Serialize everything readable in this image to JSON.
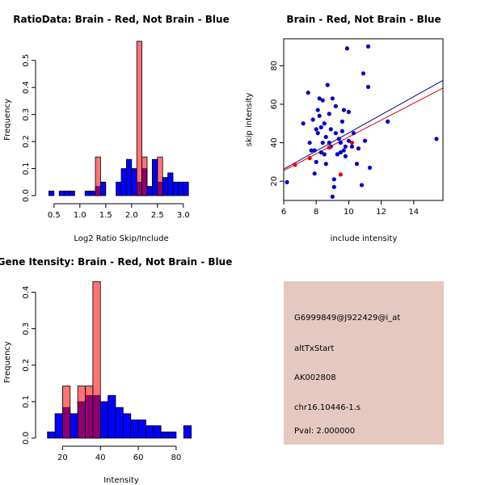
{
  "chart_data": [
    {
      "id": "ratio",
      "type": "histogram",
      "title": "RatioData: Brain - Red, Not Brain - Blue",
      "xlabel": "Log2 Ratio Skip/Include",
      "ylabel": "Frequency",
      "xlim": [
        0.3,
        3.3
      ],
      "ylim": [
        0,
        0.58
      ],
      "xticks": [
        0.5,
        1.0,
        1.5,
        2.0,
        2.5,
        3.0
      ],
      "xtick_labels": [
        "0.5",
        "1.0",
        "1.5",
        "2.0",
        "2.5",
        "3.0"
      ],
      "yticks": [
        0,
        0.1,
        0.2,
        0.3,
        0.4,
        0.5
      ],
      "ytick_labels": [
        "0.0",
        "0.1",
        "0.2",
        "0.3",
        "0.4",
        "0.5"
      ],
      "series": [
        {
          "name": "Not Brain",
          "color": "#0000ff",
          "bins": [
            {
              "x0": 0.4,
              "x1": 0.5,
              "v": 0.017
            },
            {
              "x0": 0.6,
              "x1": 0.7,
              "v": 0.017
            },
            {
              "x0": 0.7,
              "x1": 0.8,
              "v": 0.017
            },
            {
              "x0": 0.8,
              "x1": 0.9,
              "v": 0.017
            },
            {
              "x0": 1.1,
              "x1": 1.2,
              "v": 0.017
            },
            {
              "x0": 1.2,
              "x1": 1.3,
              "v": 0.017
            },
            {
              "x0": 1.3,
              "x1": 1.4,
              "v": 0.034
            },
            {
              "x0": 1.4,
              "x1": 1.5,
              "v": 0.05
            },
            {
              "x0": 1.7,
              "x1": 1.8,
              "v": 0.05
            },
            {
              "x0": 1.8,
              "x1": 1.9,
              "v": 0.1
            },
            {
              "x0": 1.9,
              "x1": 2.0,
              "v": 0.134
            },
            {
              "x0": 2.0,
              "x1": 2.1,
              "v": 0.1
            },
            {
              "x0": 2.1,
              "x1": 2.2,
              "v": 0.05
            },
            {
              "x0": 2.2,
              "x1": 2.3,
              "v": 0.1
            },
            {
              "x0": 2.3,
              "x1": 2.4,
              "v": 0.034
            },
            {
              "x0": 2.4,
              "x1": 2.5,
              "v": 0.134
            },
            {
              "x0": 2.5,
              "x1": 2.6,
              "v": 0.05
            },
            {
              "x0": 2.6,
              "x1": 2.7,
              "v": 0.067
            },
            {
              "x0": 2.7,
              "x1": 2.8,
              "v": 0.084
            },
            {
              "x0": 2.8,
              "x1": 2.9,
              "v": 0.05
            },
            {
              "x0": 2.9,
              "x1": 3.0,
              "v": 0.05
            },
            {
              "x0": 3.0,
              "x1": 3.1,
              "v": 0.05
            }
          ]
        },
        {
          "name": "Brain",
          "color": "#ff0000",
          "bins": [
            {
              "x0": 1.3,
              "x1": 1.4,
              "v": 0.143
            },
            {
              "x0": 2.1,
              "x1": 2.2,
              "v": 0.571
            },
            {
              "x0": 2.2,
              "x1": 2.3,
              "v": 0.143
            },
            {
              "x0": 2.5,
              "x1": 2.6,
              "v": 0.143
            }
          ]
        }
      ]
    },
    {
      "id": "scatter",
      "type": "scatter",
      "title": "Brain - Red, Not Brain - Blue",
      "xlabel": "include intensity",
      "ylabel": "skip intensity",
      "xlim": [
        6.0,
        15.8
      ],
      "ylim": [
        10,
        94
      ],
      "xticks": [
        6,
        8,
        10,
        12,
        14
      ],
      "xtick_labels": [
        "6",
        "8",
        "10",
        "12",
        "14"
      ],
      "yticks": [
        20,
        40,
        60,
        80
      ],
      "ytick_labels": [
        "20",
        "40",
        "60",
        "80"
      ],
      "fit_lines": [
        {
          "name": "Not Brain fit",
          "color": "#00008b",
          "x": [
            6.0,
            15.8
          ],
          "y": [
            26.3,
            72.4
          ]
        },
        {
          "name": "Brain fit",
          "color": "#e00000",
          "x": [
            6.0,
            15.8
          ],
          "y": [
            25.5,
            68.4
          ]
        }
      ],
      "series": [
        {
          "name": "Not Brain",
          "color": "#0000cc",
          "points": [
            [
              6.2,
              19.5
            ],
            [
              7.2,
              50
            ],
            [
              7.5,
              66
            ],
            [
              7.6,
              40
            ],
            [
              7.7,
              36
            ],
            [
              7.8,
              52
            ],
            [
              7.9,
              36
            ],
            [
              7.9,
              24
            ],
            [
              8.0,
              47
            ],
            [
              8.0,
              30
            ],
            [
              8.1,
              45
            ],
            [
              8.1,
              57
            ],
            [
              8.2,
              63
            ],
            [
              8.2,
              54
            ],
            [
              8.3,
              48
            ],
            [
              8.3,
              35
            ],
            [
              8.4,
              62
            ],
            [
              8.4,
              40
            ],
            [
              8.5,
              50
            ],
            [
              8.5,
              34
            ],
            [
              8.6,
              43
            ],
            [
              8.6,
              29
            ],
            [
              8.7,
              70
            ],
            [
              8.8,
              55
            ],
            [
              8.8,
              40
            ],
            [
              8.9,
              47
            ],
            [
              8.9,
              38
            ],
            [
              9.0,
              63
            ],
            [
              9.0,
              12
            ],
            [
              9.1,
              17
            ],
            [
              9.1,
              21
            ],
            [
              9.2,
              59
            ],
            [
              9.2,
              45
            ],
            [
              9.3,
              34
            ],
            [
              9.4,
              42
            ],
            [
              9.5,
              40
            ],
            [
              9.5,
              35
            ],
            [
              9.6,
              51
            ],
            [
              9.6,
              46
            ],
            [
              9.7,
              36
            ],
            [
              9.7,
              57
            ],
            [
              9.8,
              38
            ],
            [
              9.8,
              33
            ],
            [
              9.9,
              89
            ],
            [
              10.0,
              41
            ],
            [
              10.0,
              56
            ],
            [
              10.2,
              38
            ],
            [
              10.3,
              45
            ],
            [
              10.5,
              29
            ],
            [
              10.6,
              37
            ],
            [
              10.8,
              18
            ],
            [
              10.9,
              76
            ],
            [
              11.0,
              41
            ],
            [
              11.2,
              90
            ],
            [
              11.2,
              69
            ],
            [
              11.3,
              27
            ],
            [
              12.4,
              51
            ],
            [
              15.4,
              42
            ]
          ]
        },
        {
          "name": "Brain",
          "color": "#ee0000",
          "points": [
            [
              6.7,
              28.5
            ],
            [
              7.6,
              32
            ],
            [
              8.8,
              37.5
            ],
            [
              9.5,
              23.5
            ],
            [
              10.2,
              40
            ]
          ]
        }
      ]
    },
    {
      "id": "intensity",
      "type": "histogram",
      "title": "Gene Itensity: Brain - Red, Not Brain - Blue",
      "xlabel": "Intensity",
      "ylabel": "Frequency",
      "xlim": [
        10,
        92
      ],
      "ylim": [
        0,
        0.43
      ],
      "xticks": [
        20,
        40,
        60,
        80
      ],
      "xtick_labels": [
        "20",
        "40",
        "60",
        "80"
      ],
      "yticks": [
        0,
        0.1,
        0.2,
        0.3,
        0.4
      ],
      "ytick_labels": [
        "0.0",
        "0.1",
        "0.2",
        "0.3",
        "0.4"
      ],
      "series": [
        {
          "name": "Not Brain",
          "color": "#0000ff",
          "bins": [
            {
              "x0": 12,
              "x1": 16,
              "v": 0.017
            },
            {
              "x0": 16,
              "x1": 20,
              "v": 0.067
            },
            {
              "x0": 20,
              "x1": 24,
              "v": 0.084
            },
            {
              "x0": 24,
              "x1": 28,
              "v": 0.067
            },
            {
              "x0": 28,
              "x1": 32,
              "v": 0.1
            },
            {
              "x0": 32,
              "x1": 36,
              "v": 0.117
            },
            {
              "x0": 36,
              "x1": 40,
              "v": 0.117
            },
            {
              "x0": 40,
              "x1": 44,
              "v": 0.1
            },
            {
              "x0": 44,
              "x1": 48,
              "v": 0.117
            },
            {
              "x0": 48,
              "x1": 52,
              "v": 0.084
            },
            {
              "x0": 52,
              "x1": 56,
              "v": 0.067
            },
            {
              "x0": 56,
              "x1": 60,
              "v": 0.05
            },
            {
              "x0": 60,
              "x1": 64,
              "v": 0.05
            },
            {
              "x0": 64,
              "x1": 68,
              "v": 0.034
            },
            {
              "x0": 68,
              "x1": 72,
              "v": 0.034
            },
            {
              "x0": 72,
              "x1": 76,
              "v": 0.017
            },
            {
              "x0": 76,
              "x1": 80,
              "v": 0.017
            },
            {
              "x0": 84,
              "x1": 88,
              "v": 0.034
            }
          ]
        },
        {
          "name": "Brain",
          "color": "#ff0000",
          "bins": [
            {
              "x0": 20,
              "x1": 24,
              "v": 0.143
            },
            {
              "x0": 28,
              "x1": 32,
              "v": 0.143
            },
            {
              "x0": 32,
              "x1": 36,
              "v": 0.143
            },
            {
              "x0": 36,
              "x1": 40,
              "v": 0.429
            }
          ]
        }
      ]
    }
  ],
  "info_panel": {
    "background": "#e5c8c0",
    "probe_id": "G6999849@J922429@i_at",
    "event_type": "altTxStart",
    "accession": "AK002808",
    "cluster": "chr16.10446-1.s",
    "pval": "Pval: 2.000000",
    "pval_color": "#cc0000"
  }
}
